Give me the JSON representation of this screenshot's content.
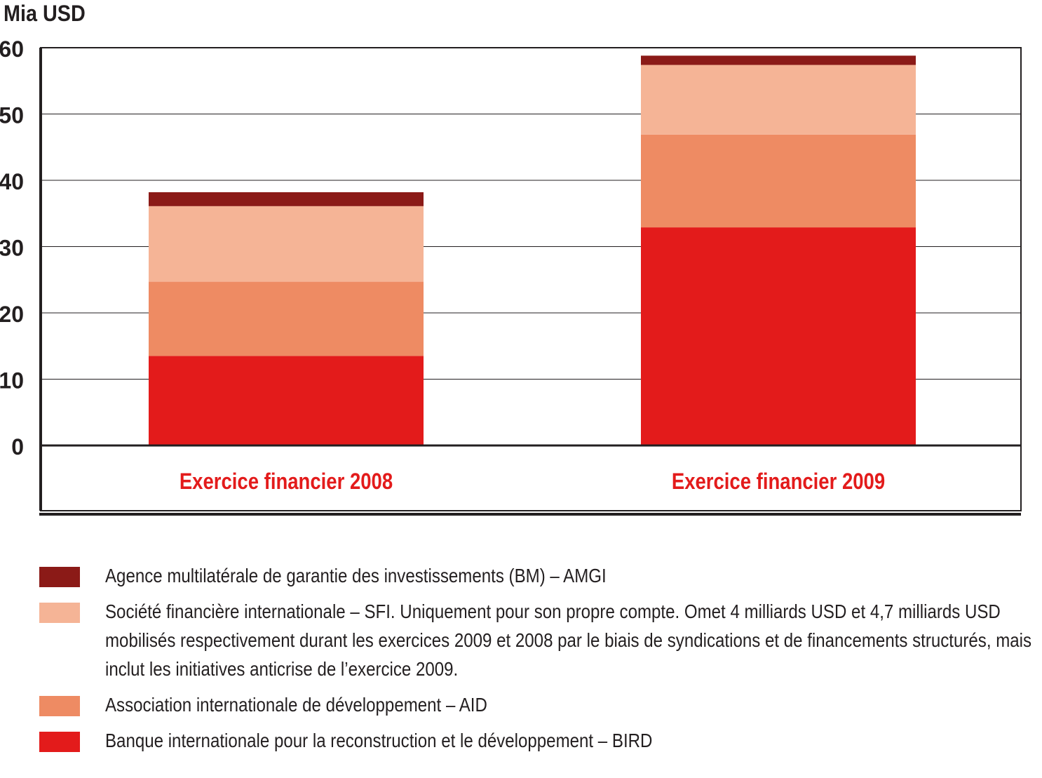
{
  "chart_data": {
    "type": "bar",
    "stacked": true,
    "ylabel": "Mia USD",
    "ylim": [
      0,
      60
    ],
    "yticks": [
      0,
      10,
      20,
      30,
      40,
      50,
      60
    ],
    "grid": true,
    "categories": [
      "Exercice financier 2008",
      "Exercice financier 2009"
    ],
    "series": [
      {
        "name": "Banque internationale pour la reconstruction et le développement – BIRD",
        "color": "#e31b1b",
        "values": [
          13.5,
          32.9
        ]
      },
      {
        "name": "Association internationale de développement – AID",
        "color": "#ee8b63",
        "values": [
          11.2,
          14.0
        ]
      },
      {
        "name": "Société financière internationale – SFI. Uniquement pour son propre compte. Omet 4 milliards USD et 4,7 milliards USD mobilisés respectivement durant les exercices 2009 et 2008 par le biais de syndications et de financements structurés, mais inclut les initiatives anticrise de l’exercice 2009.",
        "color": "#f5b496",
        "values": [
          11.4,
          10.5
        ]
      },
      {
        "name": "Agence multilatérale de garantie des investissements (BM) – AMGI",
        "color": "#8b1a17",
        "values": [
          2.1,
          1.4
        ]
      }
    ],
    "legend_position": "bottom",
    "category_label_color": "#e31b1b"
  },
  "legend": [
    {
      "label": "Agence multilatérale de garantie des investissements (BM) – AMGI",
      "color": "#8b1a17"
    },
    {
      "label": "Société financière internationale – SFI. Uniquement pour son propre compte. Omet 4 milliards USD et 4,7 milliards USD mobilisés respectivement durant les exercices 2009 et 2008 par le biais de syndications et de financements structurés, mais inclut les initiatives anticrise de l’exercice 2009.",
      "color": "#f5b496"
    },
    {
      "label": "Association internationale de développement – AID",
      "color": "#ee8b63"
    },
    {
      "label": "Banque internationale pour la reconstruction et le développement – BIRD",
      "color": "#e31b1b"
    }
  ]
}
